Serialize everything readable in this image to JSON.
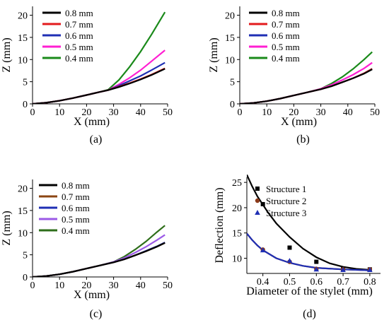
{
  "chart_data": [
    {
      "panel": "(a)",
      "type": "line",
      "xlabel": "X (mm)",
      "ylabel": "Z (mm)",
      "xlim": [
        0,
        50
      ],
      "ylim": [
        0,
        22
      ],
      "xticks": [
        0,
        10,
        20,
        30,
        40,
        50
      ],
      "yticks": [
        0,
        5,
        10,
        15,
        20
      ],
      "x": [
        0,
        5,
        10,
        15,
        20,
        25,
        28,
        32,
        36,
        40,
        44,
        49
      ],
      "series": [
        {
          "name": "0.8 mm",
          "color": "#000000",
          "values": [
            0,
            0.25,
            0.7,
            1.3,
            2.0,
            2.7,
            3.1,
            3.8,
            4.6,
            5.5,
            6.5,
            7.9
          ]
        },
        {
          "name": "0.7 mm",
          "color": "#e31a1c",
          "values": [
            0,
            0.25,
            0.7,
            1.3,
            2.0,
            2.7,
            3.1,
            3.9,
            4.7,
            5.6,
            6.6,
            8.0
          ]
        },
        {
          "name": "0.6 mm",
          "color": "#1f2fb4",
          "values": [
            0,
            0.25,
            0.7,
            1.3,
            2.0,
            2.7,
            3.1,
            4.1,
            5.2,
            6.3,
            7.6,
            9.3
          ]
        },
        {
          "name": "0.5 mm",
          "color": "#ff1fd2",
          "values": [
            0,
            0.25,
            0.7,
            1.3,
            2.0,
            2.7,
            3.1,
            4.4,
            5.9,
            7.6,
            9.6,
            12.1
          ]
        },
        {
          "name": "0.4 mm",
          "color": "#1a8a1a",
          "values": [
            0,
            0.25,
            0.7,
            1.3,
            2.0,
            2.7,
            3.2,
            5.4,
            8.4,
            11.8,
            15.6,
            20.7
          ]
        }
      ]
    },
    {
      "panel": "(b)",
      "type": "line",
      "xlabel": "X (mm)",
      "ylabel": "Z (mm)",
      "xlim": [
        0,
        50
      ],
      "ylim": [
        0,
        22
      ],
      "xticks": [
        0,
        10,
        20,
        30,
        40,
        50
      ],
      "yticks": [
        0,
        5,
        10,
        15,
        20
      ],
      "x": [
        0,
        5,
        10,
        15,
        20,
        25,
        30,
        34,
        38,
        42,
        46,
        49
      ],
      "series": [
        {
          "name": "0.8 mm",
          "color": "#000000",
          "values": [
            0,
            0.2,
            0.6,
            1.2,
            1.9,
            2.6,
            3.3,
            4.0,
            4.9,
            5.8,
            6.8,
            7.8
          ]
        },
        {
          "name": "0.7 mm",
          "color": "#e31a1c",
          "values": [
            0,
            0.2,
            0.6,
            1.2,
            1.9,
            2.6,
            3.3,
            4.0,
            4.9,
            5.8,
            6.9,
            7.9
          ]
        },
        {
          "name": "0.6 mm",
          "color": "#1f2fb4",
          "values": [
            0,
            0.2,
            0.6,
            1.2,
            1.9,
            2.6,
            3.3,
            4.0,
            4.9,
            5.8,
            6.9,
            7.9
          ]
        },
        {
          "name": "0.5 mm",
          "color": "#ff1fd2",
          "values": [
            0,
            0.2,
            0.6,
            1.2,
            1.9,
            2.6,
            3.4,
            4.3,
            5.4,
            6.6,
            8.0,
            9.3
          ]
        },
        {
          "name": "0.4 mm",
          "color": "#1a8a1a",
          "values": [
            0,
            0.2,
            0.6,
            1.2,
            1.9,
            2.6,
            3.4,
            4.6,
            6.1,
            7.9,
            10.0,
            11.7
          ]
        }
      ]
    },
    {
      "panel": "(c)",
      "type": "line",
      "xlabel": "X (mm)",
      "ylabel": "Z (mm)",
      "xlim": [
        0,
        50
      ],
      "ylim": [
        0,
        22
      ],
      "xticks": [
        0,
        10,
        20,
        30,
        40,
        50
      ],
      "yticks": [
        0,
        5,
        10,
        15,
        20
      ],
      "x": [
        0,
        5,
        10,
        15,
        20,
        25,
        30,
        34,
        38,
        42,
        46,
        49
      ],
      "series": [
        {
          "name": "0.8 mm",
          "color": "#000000",
          "values": [
            0,
            0.2,
            0.6,
            1.2,
            1.9,
            2.6,
            3.3,
            4.0,
            4.9,
            5.8,
            6.8,
            7.7
          ]
        },
        {
          "name": "0.7 mm",
          "color": "#8b4513",
          "values": [
            0,
            0.2,
            0.6,
            1.2,
            1.9,
            2.6,
            3.3,
            4.0,
            4.9,
            5.8,
            6.8,
            7.7
          ]
        },
        {
          "name": "0.6 mm",
          "color": "#1f2fb4",
          "values": [
            0,
            0.2,
            0.6,
            1.2,
            1.9,
            2.6,
            3.3,
            4.0,
            4.9,
            5.9,
            6.9,
            7.8
          ]
        },
        {
          "name": "0.5 mm",
          "color": "#9b59e6",
          "values": [
            0,
            0.2,
            0.6,
            1.2,
            1.9,
            2.6,
            3.4,
            4.3,
            5.5,
            6.8,
            8.3,
            9.5
          ]
        },
        {
          "name": "0.4 mm",
          "color": "#2e6e1a",
          "values": [
            0,
            0.2,
            0.6,
            1.2,
            1.9,
            2.6,
            3.4,
            4.6,
            6.2,
            8.0,
            10.1,
            11.6
          ]
        }
      ]
    },
    {
      "panel": "(d)",
      "type": "scatter",
      "xlabel": "Diameter of the stylet (mm)",
      "ylabel": "Deflection (mm)",
      "xlim": [
        0.34,
        0.84
      ],
      "ylim": [
        7,
        26
      ],
      "xticks": [
        0.4,
        0.5,
        0.6,
        0.7,
        0.8
      ],
      "yticks": [
        10,
        15,
        20,
        25
      ],
      "series": [
        {
          "name": "Structure 1",
          "color": "#000000",
          "marker": "square",
          "x": [
            0.4,
            0.5,
            0.6,
            0.7,
            0.8
          ],
          "values": [
            20.7,
            12.1,
            9.3,
            7.9,
            7.8
          ]
        },
        {
          "name": "Structure 2",
          "color": "#8b3a1a",
          "marker": "circle",
          "x": [
            0.4,
            0.5,
            0.6,
            0.7,
            0.8
          ],
          "values": [
            11.7,
            9.3,
            7.9,
            7.8,
            7.8
          ]
        },
        {
          "name": "Structure 3",
          "color": "#1f2fb4",
          "marker": "triangle",
          "x": [
            0.4,
            0.5,
            0.6,
            0.7,
            0.8
          ],
          "values": [
            11.6,
            9.5,
            7.8,
            7.7,
            7.7
          ]
        }
      ],
      "fits": [
        {
          "color": "#000000",
          "x": [
            0.34,
            0.36,
            0.38,
            0.4,
            0.42,
            0.45,
            0.5,
            0.55,
            0.6,
            0.65,
            0.7,
            0.75,
            0.8
          ],
          "values": [
            26.5,
            24.2,
            22.2,
            20.6,
            19.0,
            16.9,
            14.2,
            11.9,
            10.2,
            9.0,
            8.3,
            7.9,
            7.7
          ]
        },
        {
          "color": "#8b3a1a",
          "x": [
            0.34,
            0.36,
            0.38,
            0.4,
            0.45,
            0.5,
            0.55,
            0.6,
            0.7,
            0.8
          ],
          "values": [
            14.9,
            13.6,
            12.5,
            11.6,
            10.0,
            9.1,
            8.5,
            8.1,
            7.8,
            7.6
          ]
        },
        {
          "color": "#1f2fb4",
          "x": [
            0.34,
            0.36,
            0.38,
            0.4,
            0.45,
            0.5,
            0.55,
            0.6,
            0.7,
            0.8
          ],
          "values": [
            14.9,
            13.6,
            12.5,
            11.6,
            10.0,
            9.1,
            8.5,
            8.1,
            7.8,
            7.6
          ]
        }
      ]
    }
  ]
}
